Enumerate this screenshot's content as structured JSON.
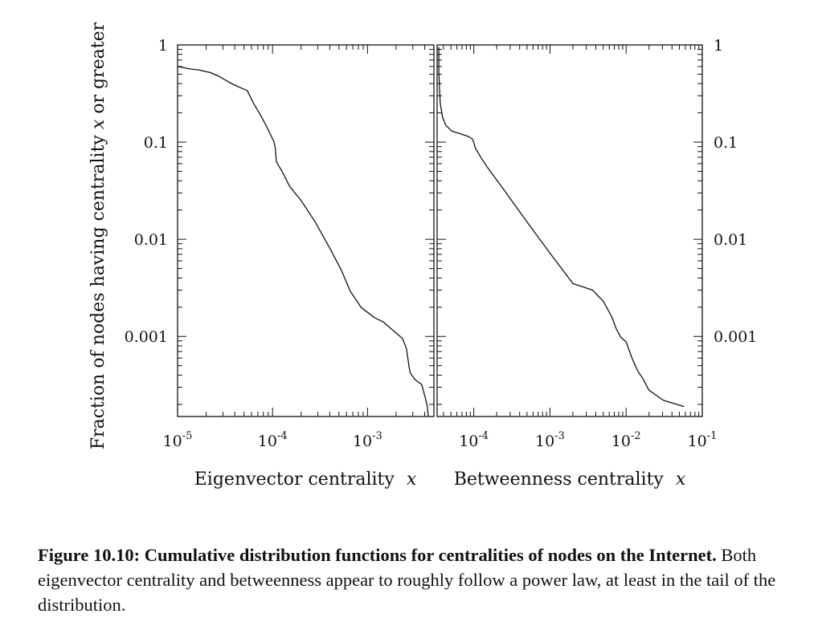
{
  "chart_data": [
    {
      "type": "line",
      "xlabel": "Eigenvector centrality",
      "xlabel_var": "x",
      "ylabel": "Fraction of nodes having centrality",
      "ylabel_var": "x",
      "ylabel_suffix": "or greater",
      "xscale": "log",
      "yscale": "log",
      "xlim": [
        1e-05,
        0.005
      ],
      "ylim": [
        0.00015,
        1
      ],
      "x_ticks": [
        {
          "base": "10",
          "exp": "-5",
          "value": 1e-05
        },
        {
          "base": "10",
          "exp": "-4",
          "value": 0.0001
        },
        {
          "base": "10",
          "exp": "-3",
          "value": 0.001
        }
      ],
      "y_ticks": [
        {
          "label": "1",
          "value": 1
        },
        {
          "label": "0.1",
          "value": 0.1
        },
        {
          "label": "0.01",
          "value": 0.01
        },
        {
          "label": "0.001",
          "value": 0.001
        }
      ],
      "series": [
        {
          "x": [
            1e-05,
            1.31e-05,
            1.71e-05,
            2.2e-05,
            2.67e-05,
            3.26e-05,
            3.89e-05,
            4.68e-05,
            5.4e-05,
            6.31e-05,
            7.24e-05,
            8.5e-05,
            9.5e-05,
            0.0001037,
            0.000107,
            0.0001096,
            0.0001148,
            0.0001259,
            0.0001514,
            0.0002,
            0.0002818,
            0.0003981,
            0.0005308,
            0.0006607,
            0.0007762,
            0.0008511,
            0.0009772,
            0.0012023,
            0.0014791,
            0.0018621,
            0.0023442,
            0.0025704,
            0.0027542,
            0.0028184,
            0.0031623,
            0.0037154,
            0.0040738,
            0.0042658,
            0.0043651
          ],
          "y": [
            0.6,
            0.57,
            0.55,
            0.52,
            0.48,
            0.43,
            0.39,
            0.36,
            0.34,
            0.25,
            0.2,
            0.15,
            0.12,
            0.1,
            0.085,
            0.063,
            0.058,
            0.05,
            0.035,
            0.025,
            0.015,
            0.0082,
            0.0048,
            0.0029,
            0.0023,
            0.002,
            0.0018,
            0.00155,
            0.0014,
            0.00115,
            0.00095,
            0.00075,
            0.00047,
            0.00042,
            0.00036,
            0.00032,
            0.00023,
            0.00019,
            0.00015
          ]
        }
      ]
    },
    {
      "type": "line",
      "xlabel": "Betweenness centrality",
      "xlabel_var": "x",
      "xscale": "log",
      "yscale": "log",
      "xlim": [
        3.3e-05,
        0.1
      ],
      "ylim": [
        0.00015,
        1
      ],
      "x_ticks": [
        {
          "base": "10",
          "exp": "-4",
          "value": 0.0001
        },
        {
          "base": "10",
          "exp": "-3",
          "value": 0.001
        },
        {
          "base": "10",
          "exp": "-2",
          "value": 0.01
        },
        {
          "base": "10",
          "exp": "-1",
          "value": 0.1
        }
      ],
      "y_ticks": [
        {
          "label": "1",
          "value": 1
        },
        {
          "label": "0.1",
          "value": 0.1
        },
        {
          "label": "0.01",
          "value": 0.01
        },
        {
          "label": "0.001",
          "value": 0.001
        }
      ],
      "series": [
        {
          "x": [
            3.47e-05,
            3.47e-05,
            3.55e-05,
            3.63e-05,
            3.89e-05,
            4.27e-05,
            5.13e-05,
            6.61e-05,
            8.32e-05,
            9.55e-05,
            0.0001,
            0.000104,
            0.000123,
            0.000151,
            0.000251,
            0.000501,
            0.001,
            0.002,
            0.003631,
            0.005012,
            0.006457,
            0.007413,
            0.008511,
            0.01,
            0.011749,
            0.013183,
            0.014454,
            0.016218,
            0.019953,
            0.030903,
            0.057544
          ],
          "y": [
            0.95,
            0.55,
            0.35,
            0.25,
            0.18,
            0.15,
            0.13,
            0.122,
            0.115,
            0.108,
            0.1,
            0.088,
            0.07,
            0.055,
            0.032,
            0.015,
            0.0072,
            0.0035,
            0.003,
            0.0023,
            0.0016,
            0.0012,
            0.00098,
            0.00088,
            0.00062,
            0.0005,
            0.00043,
            0.00038,
            0.00028,
            0.00022,
            0.00019
          ]
        }
      ]
    }
  ],
  "caption": {
    "bold": "Figure 10.10: Cumulative distribution functions for centralities of nodes on the Internet.",
    "text": "Both eigenvector centrality and betweenness appear to roughly follow a power law, at least in the tail of the distribution."
  }
}
